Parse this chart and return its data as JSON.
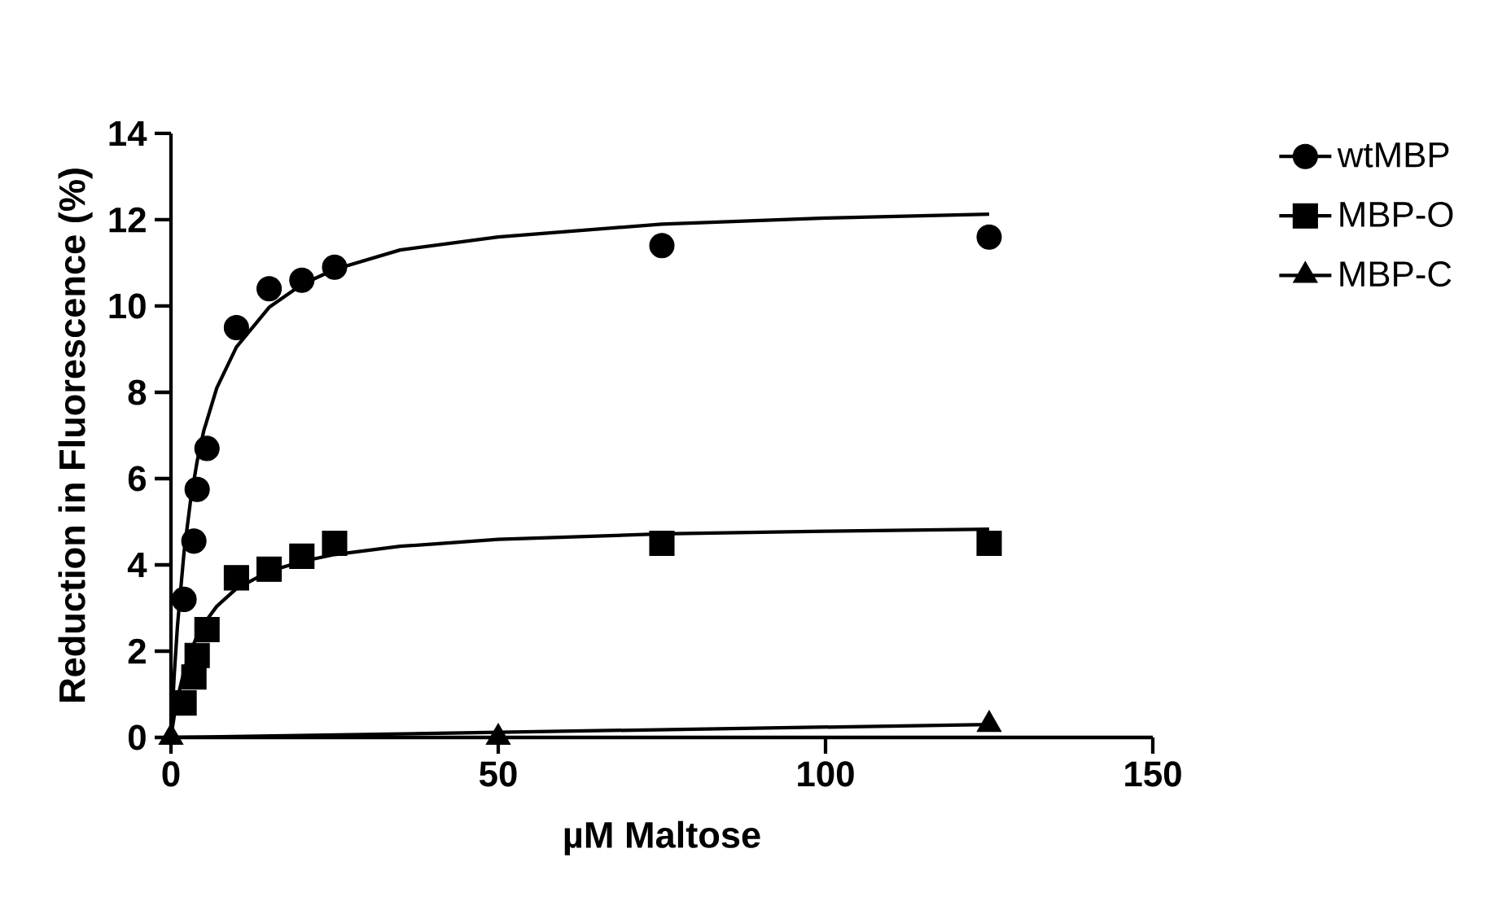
{
  "chart_data": {
    "type": "scatter",
    "xlabel": "µM Maltose",
    "ylabel": "Reduction in Fluorescence (%)",
    "xlim": [
      0,
      150
    ],
    "ylim": [
      0,
      14
    ],
    "xticks": [
      0,
      50,
      100,
      150
    ],
    "yticks": [
      0,
      2,
      4,
      6,
      8,
      10,
      12,
      14
    ],
    "legend": "right",
    "grid": false,
    "series": [
      {
        "name": "wtMBP",
        "color": "#000000",
        "marker": "circle",
        "x": [
          2,
          3.5,
          4,
          5.5,
          10,
          15,
          20,
          25,
          75,
          125
        ],
        "values": [
          3.2,
          4.55,
          5.75,
          6.7,
          9.5,
          10.4,
          10.6,
          10.9,
          11.4,
          11.6
        ]
      },
      {
        "name": "MBP-O",
        "color": "#000000",
        "marker": "square",
        "x": [
          2,
          3.5,
          4,
          5.5,
          10,
          15,
          20,
          25,
          75,
          125
        ],
        "values": [
          0.8,
          1.4,
          1.9,
          2.5,
          3.7,
          3.9,
          4.2,
          4.5,
          4.5,
          4.5
        ]
      },
      {
        "name": "MBP-C",
        "color": "#000000",
        "marker": "triangle",
        "x": [
          0,
          50,
          125
        ],
        "values": [
          0,
          0,
          0.3
        ]
      },
      {
        "type": "line",
        "color": "#000000",
        "marker": "none",
        "x": [
          0,
          0.5,
          1,
          2,
          3,
          4,
          5,
          7,
          10,
          15,
          20,
          25,
          35,
          50,
          75,
          100,
          125
        ],
        "values": [
          0,
          1.45,
          2.6,
          4.3,
          5.5,
          6.4,
          7.1,
          8.1,
          9.05,
          9.97,
          10.5,
          10.85,
          11.3,
          11.6,
          11.9,
          12.04,
          12.13
        ]
      },
      {
        "type": "line",
        "color": "#000000",
        "marker": "none",
        "x": [
          0,
          0.5,
          1,
          2,
          3,
          4,
          5,
          7,
          10,
          15,
          20,
          25,
          35,
          50,
          75,
          100,
          125
        ],
        "values": [
          0,
          0.5,
          0.91,
          1.54,
          2.0,
          2.35,
          2.63,
          3.04,
          3.45,
          3.85,
          4.08,
          4.24,
          4.43,
          4.59,
          4.72,
          4.78,
          4.83
        ]
      },
      {
        "type": "line",
        "color": "#000000",
        "marker": "none",
        "x": [
          0,
          125
        ],
        "values": [
          0,
          0.3
        ]
      }
    ]
  }
}
